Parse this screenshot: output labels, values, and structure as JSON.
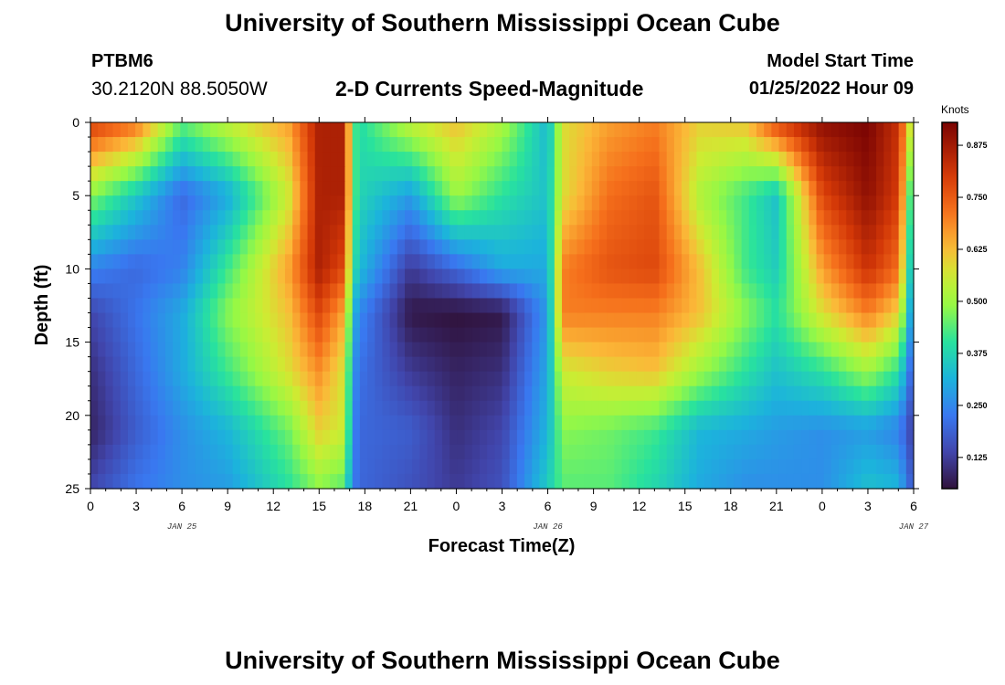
{
  "header": {
    "title": "University of Southern Mississippi Ocean Cube",
    "station": "PTBM6",
    "coordinates": "30.2120N  88.5050W",
    "product": "2-D Currents Speed-Magnitude",
    "model_start_label": "Model Start Time",
    "model_start_value": "01/25/2022 Hour 09"
  },
  "footer": {
    "title": "University of Southern Mississippi Ocean Cube"
  },
  "chart_data": {
    "type": "heatmap",
    "xlabel": "Forecast Time(Z)",
    "ylabel": "Depth (ft)",
    "colorbar_label": "Knots",
    "x_tick_labels": [
      "0",
      "3",
      "6",
      "9",
      "12",
      "15",
      "18",
      "21",
      "0",
      "3",
      "6",
      "9",
      "12",
      "15",
      "18",
      "21",
      "0",
      "3",
      "6"
    ],
    "x_date_labels": [
      {
        "text": "JAN 25",
        "hour_index": 6
      },
      {
        "text": "JAN 26",
        "hour_index": 30
      },
      {
        "text": "JAN 27",
        "hour_index": 54
      }
    ],
    "x_range_hours": [
      0,
      54
    ],
    "y_ticks": [
      0,
      5,
      10,
      15,
      20,
      25
    ],
    "y_tick_labels": [
      "0",
      "5",
      "10",
      "15",
      "20",
      "25"
    ],
    "y_range": [
      0,
      25
    ],
    "y_inverted": true,
    "colorbar_ticks": [
      "0.125",
      "0.250",
      "0.375",
      "0.500",
      "0.625",
      "0.750",
      "0.875"
    ],
    "colorbar_tick_values": [
      0.125,
      0.25,
      0.375,
      0.5,
      0.625,
      0.75,
      0.875
    ],
    "value_range": [
      0.05,
      0.93
    ],
    "depths_ft": [
      0,
      5,
      10,
      13,
      17,
      21,
      25
    ],
    "times_hours": [
      0,
      3,
      6,
      9,
      13,
      15,
      16.5,
      17.5,
      21,
      24,
      27,
      30,
      31,
      34,
      37,
      40,
      43,
      45,
      48,
      51,
      53,
      54
    ],
    "speed_knots": [
      [
        0.8,
        0.72,
        0.45,
        0.55,
        0.66,
        0.86,
        0.86,
        0.38,
        0.55,
        0.62,
        0.52,
        0.32,
        0.58,
        0.66,
        0.7,
        0.6,
        0.62,
        0.78,
        0.9,
        0.93,
        0.82,
        0.5
      ],
      [
        0.48,
        0.35,
        0.2,
        0.3,
        0.56,
        0.86,
        0.86,
        0.38,
        0.28,
        0.5,
        0.4,
        0.34,
        0.58,
        0.72,
        0.76,
        0.52,
        0.42,
        0.34,
        0.78,
        0.9,
        0.8,
        0.32
      ],
      [
        0.24,
        0.2,
        0.24,
        0.42,
        0.66,
        0.86,
        0.78,
        0.34,
        0.12,
        0.2,
        0.3,
        0.3,
        0.7,
        0.76,
        0.78,
        0.62,
        0.42,
        0.36,
        0.66,
        0.82,
        0.72,
        0.26
      ],
      [
        0.14,
        0.22,
        0.3,
        0.48,
        0.62,
        0.78,
        0.66,
        0.26,
        0.06,
        0.05,
        0.06,
        0.28,
        0.7,
        0.7,
        0.7,
        0.62,
        0.48,
        0.4,
        0.58,
        0.7,
        0.6,
        0.22
      ],
      [
        0.1,
        0.2,
        0.3,
        0.42,
        0.58,
        0.68,
        0.58,
        0.22,
        0.12,
        0.08,
        0.1,
        0.3,
        0.56,
        0.6,
        0.62,
        0.5,
        0.4,
        0.34,
        0.4,
        0.5,
        0.4,
        0.16
      ],
      [
        0.08,
        0.18,
        0.26,
        0.32,
        0.46,
        0.6,
        0.56,
        0.2,
        0.18,
        0.1,
        0.14,
        0.32,
        0.48,
        0.46,
        0.42,
        0.32,
        0.3,
        0.28,
        0.26,
        0.28,
        0.24,
        0.12
      ],
      [
        0.14,
        0.22,
        0.26,
        0.28,
        0.4,
        0.48,
        0.44,
        0.2,
        0.16,
        0.12,
        0.16,
        0.36,
        0.44,
        0.44,
        0.38,
        0.3,
        0.26,
        0.26,
        0.26,
        0.34,
        0.32,
        0.16
      ]
    ]
  }
}
